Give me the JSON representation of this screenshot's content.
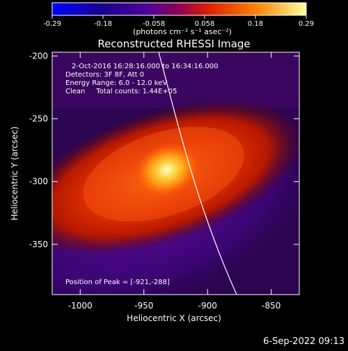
{
  "colorbar": {
    "ticks": [
      "-0.29",
      "-0.18",
      "-0.058",
      "0.058",
      "0.18",
      "0.29"
    ],
    "unit_label": "(photons cm⁻² s⁻¹ asec⁻²)"
  },
  "title": "Reconstructed RHESSI Image",
  "info": {
    "line1": "2-Oct-2016 16:28:16.000 to 16:34:16.000",
    "line2": "Detectors: 3F 8F, Att 0",
    "line3": "Energy Range: 6.0 - 12.0 keV",
    "line4": "Clean     Total counts: 1.44E+05",
    "peak": "Position of Peak = [-921,-288]"
  },
  "axes": {
    "x_label": "Heliocentric X (arcsec)",
    "y_label": "Heliocentric Y (arcsec)",
    "x_ticks": [
      {
        "value": -1000,
        "label": "-1000"
      },
      {
        "value": -950,
        "label": "-950"
      },
      {
        "value": -900,
        "label": "-900"
      },
      {
        "value": -850,
        "label": "-850"
      }
    ],
    "y_ticks": [
      {
        "value": -200,
        "label": "-200"
      },
      {
        "value": -250,
        "label": "-250"
      },
      {
        "value": -300,
        "label": "-300"
      },
      {
        "value": -350,
        "label": "-350"
      }
    ],
    "xlim": [
      -1022,
      -828
    ],
    "ylim": [
      -390,
      -197
    ]
  },
  "timestamp": "6-Sep-2022 09:13"
}
